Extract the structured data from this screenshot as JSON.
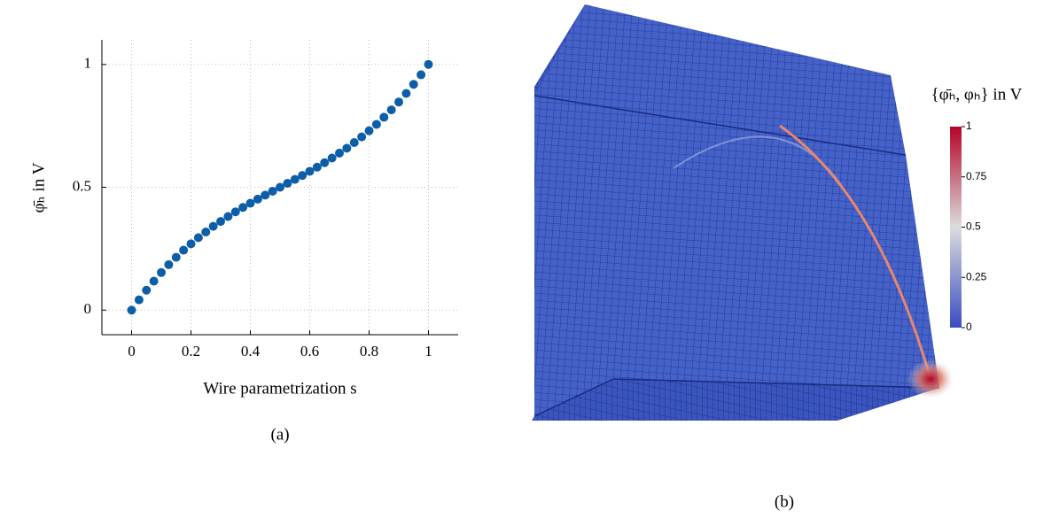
{
  "chart_data": {
    "type": "scatter",
    "x_label": "Wire parametrization s",
    "y_label": "φ̄ₕ in V",
    "caption": "(a)",
    "x": [
      0,
      0.025,
      0.05,
      0.075,
      0.1,
      0.125,
      0.15,
      0.175,
      0.2,
      0.225,
      0.25,
      0.275,
      0.3,
      0.325,
      0.35,
      0.375,
      0.4,
      0.425,
      0.45,
      0.475,
      0.5,
      0.525,
      0.55,
      0.575,
      0.6,
      0.625,
      0.65,
      0.675,
      0.7,
      0.725,
      0.75,
      0.775,
      0.8,
      0.825,
      0.85,
      0.875,
      0.9,
      0.925,
      0.95,
      0.975,
      1
    ],
    "values": [
      0,
      0.042,
      0.081,
      0.118,
      0.153,
      0.185,
      0.215,
      0.244,
      0.27,
      0.295,
      0.318,
      0.341,
      0.361,
      0.381,
      0.4,
      0.418,
      0.435,
      0.452,
      0.468,
      0.484,
      0.5,
      0.516,
      0.532,
      0.548,
      0.565,
      0.582,
      0.6,
      0.619,
      0.639,
      0.659,
      0.682,
      0.705,
      0.73,
      0.756,
      0.785,
      0.815,
      0.847,
      0.882,
      0.919,
      0.958,
      1
    ],
    "color": "#0d5ea8",
    "xlim": [
      -0.1,
      1.1
    ],
    "ylim": [
      -0.1,
      1.1
    ],
    "xticks": [
      0,
      0.2,
      0.4,
      0.6,
      0.8,
      1
    ],
    "yticks": [
      0,
      0.5,
      1
    ],
    "grid": true
  },
  "panel_b": {
    "caption": "(b)",
    "colorbar": {
      "title": "{φ̄ₕ, φₕ} in V",
      "lim": [
        0,
        1
      ],
      "ticks": [
        0,
        0.25,
        0.5,
        0.75,
        1
      ],
      "colors": [
        "#3b4cc0",
        "#dcdddd",
        "#b40426"
      ]
    }
  }
}
